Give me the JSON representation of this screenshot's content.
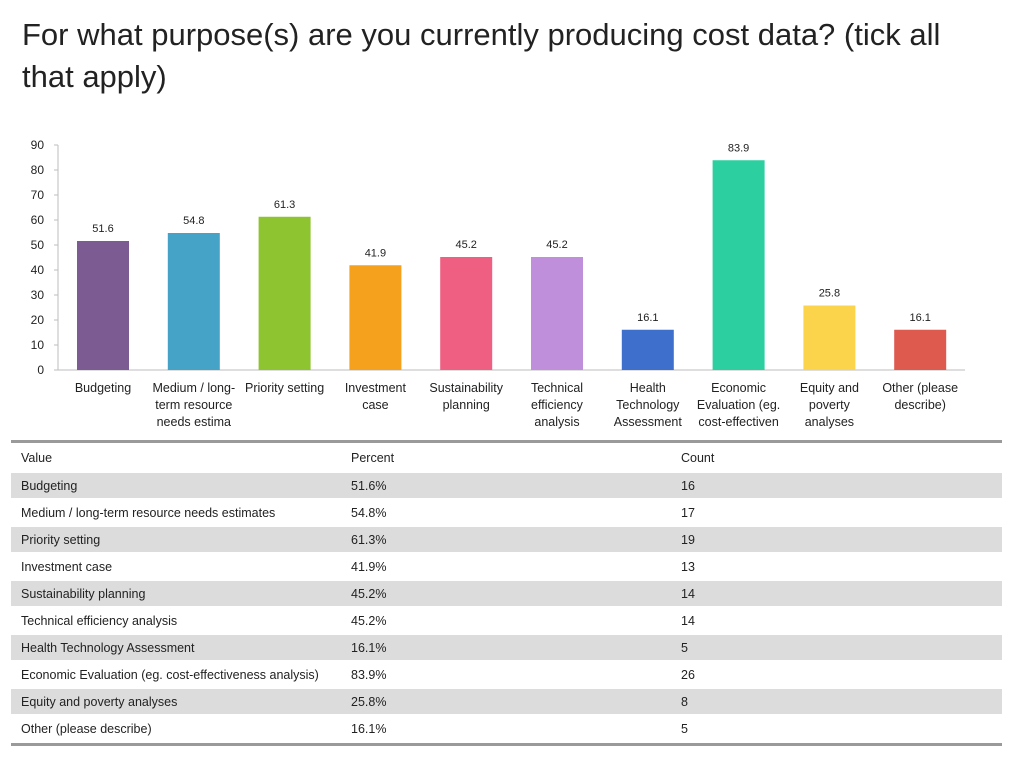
{
  "title": "For what purpose(s) are you currently producing cost data? (tick all that apply)",
  "chart_data": {
    "type": "bar",
    "title": "For what purpose(s) are you currently producing cost data? (tick all that apply)",
    "xlabel": "",
    "ylabel": "",
    "ylim": [
      0,
      90
    ],
    "yticks": [
      0,
      10,
      20,
      30,
      40,
      50,
      60,
      70,
      80,
      90
    ],
    "grid": false,
    "categories": [
      [
        "Budgeting"
      ],
      [
        "Medium / long-",
        "term resource",
        "needs estima"
      ],
      [
        "Priority setting"
      ],
      [
        "Investment",
        "case"
      ],
      [
        "Sustainability",
        "planning"
      ],
      [
        "Technical",
        "efficiency",
        "analysis"
      ],
      [
        "Health",
        "Technology",
        "Assessment"
      ],
      [
        "Economic",
        "Evaluation (eg.",
        "cost-effectiven"
      ],
      [
        "Equity and",
        "poverty",
        "analyses"
      ],
      [
        "Other (please",
        "describe)"
      ]
    ],
    "values": [
      51.6,
      54.8,
      61.3,
      41.9,
      45.2,
      45.2,
      16.1,
      83.9,
      25.8,
      16.1
    ],
    "value_labels": [
      "51.6",
      "54.8",
      "61.3",
      "41.9",
      "45.2",
      "45.2",
      "16.1",
      "83.9",
      "25.8",
      "16.1"
    ],
    "colors": [
      "#7b5b91",
      "#45a3c8",
      "#8ec430",
      "#f5a11e",
      "#ee5f82",
      "#c08fdb",
      "#3f6fcd",
      "#2bcfa0",
      "#fbd44c",
      "#de5a4f"
    ]
  },
  "table": {
    "headers": [
      "Value",
      "Percent",
      "Count"
    ],
    "rows": [
      [
        "Budgeting",
        "51.6%",
        "16"
      ],
      [
        "Medium / long-term resource needs estimates",
        "54.8%",
        "17"
      ],
      [
        "Priority setting",
        "61.3%",
        "19"
      ],
      [
        "Investment case",
        "41.9%",
        "13"
      ],
      [
        "Sustainability planning",
        "45.2%",
        "14"
      ],
      [
        "Technical efficiency analysis",
        "45.2%",
        "14"
      ],
      [
        "Health Technology Assessment",
        "16.1%",
        "5"
      ],
      [
        "Economic Evaluation (eg. cost-effectiveness analysis)",
        "83.9%",
        "26"
      ],
      [
        "Equity and poverty analyses",
        "25.8%",
        "8"
      ],
      [
        "Other (please describe)",
        "16.1%",
        "5"
      ]
    ]
  }
}
